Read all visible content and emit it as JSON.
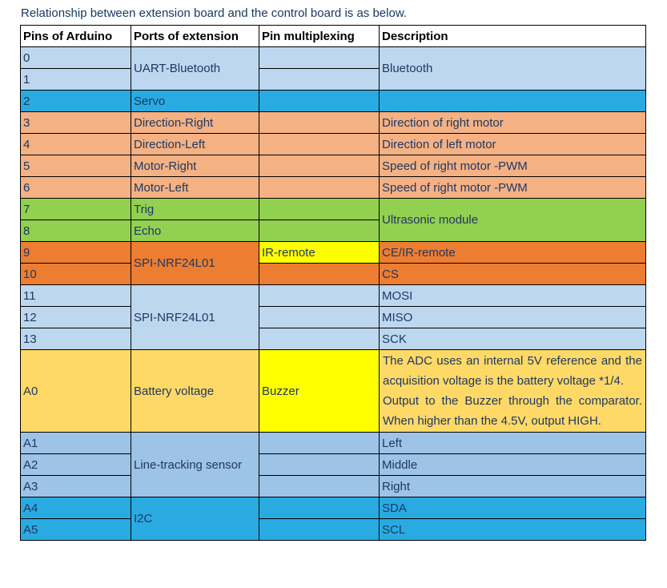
{
  "caption": "Relationship between extension board and the control board is as below.",
  "palette": {
    "lightblue": "#BDD7EE",
    "mediumblue": "#9DC3E6",
    "brightblue": "#29ABE2",
    "salmon": "#F4B183",
    "green": "#92D050",
    "darkorange": "#ED7D31",
    "yellow": "#FFFF00",
    "gold": "#FFD966",
    "text": "#1F3864"
  },
  "table": {
    "headers": [
      "Pins of Arduino",
      "Ports of extension",
      "Pin multiplexing",
      "Description"
    ],
    "rows": [
      {
        "pin": "0",
        "port": "UART-Bluetooth",
        "desc": "Bluetooth"
      },
      {
        "pin": "1"
      },
      {
        "pin": "2",
        "port": "Servo"
      },
      {
        "pin": "3",
        "port": "Direction-Right",
        "desc": "Direction of right motor"
      },
      {
        "pin": "4",
        "port": "Direction-Left",
        "desc": "Direction of left motor"
      },
      {
        "pin": "5",
        "port": "Motor-Right",
        "desc": "Speed of right motor -PWM"
      },
      {
        "pin": "6",
        "port": "Motor-Left",
        "desc": "Speed of right motor -PWM"
      },
      {
        "pin": "7",
        "port": "Trig",
        "desc": "Ultrasonic module"
      },
      {
        "pin": "8",
        "port": "Echo"
      },
      {
        "pin": "9",
        "port": "SPI-NRF24L01",
        "mux": "IR-remote",
        "desc": "CE/IR-remote"
      },
      {
        "pin": "10",
        "desc": "CS"
      },
      {
        "pin": "11",
        "port": "SPI-NRF24L01",
        "desc": "MOSI"
      },
      {
        "pin": "12",
        "desc": "MISO"
      },
      {
        "pin": "13",
        "desc": "SCK"
      },
      {
        "pin": "A0",
        "port": "Battery voltage",
        "mux": "Buzzer",
        "desc_lines": [
          "The ADC uses an internal 5V reference and the acquisition voltage is the battery voltage *1/4.",
          "Output to the Buzzer through the comparator. When higher than the 4.5V, output HIGH."
        ]
      },
      {
        "pin": "A1",
        "port": "Line-tracking sensor",
        "desc": "Left"
      },
      {
        "pin": "A2",
        "desc": "Middle"
      },
      {
        "pin": "A3",
        "desc": "Right"
      },
      {
        "pin": "A4",
        "port": "I2C",
        "desc": "SDA"
      },
      {
        "pin": "A5",
        "desc": "SCL"
      }
    ]
  }
}
